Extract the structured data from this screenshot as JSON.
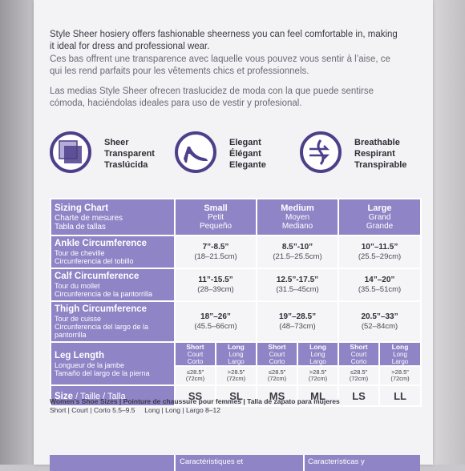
{
  "intro": {
    "en": "Style Sheer hosiery offers fashionable sheerness you can feel comfortable in, making it ideal for dress and professional wear.",
    "fr": "Ces bas offrent une transparence avec laquelle vous pouvez vous sentir à l’aise, ce qui les rend parfaits pour les vêtements chics et professionnels.",
    "es": "Las medias Style Sheer ofrecen traslucidez de moda con la que puede sentirse cómoda, haciéndolas ideales para uso de vestir y profesional."
  },
  "features": [
    {
      "icon": "sheer-squares-icon",
      "en": "Sheer",
      "fr": "Transparent",
      "es": "Traslúcida"
    },
    {
      "icon": "high-heel-shoe-icon",
      "en": "Elegant",
      "fr": "Élégant",
      "es": "Elegante"
    },
    {
      "icon": "breathable-air-icon",
      "en": "Breathable",
      "fr": "Respirant",
      "es": "Transpirable"
    }
  ],
  "chart": {
    "title": {
      "en": "Sizing Chart",
      "fr": "Charte de mesures",
      "es": "Tabla de tallas"
    },
    "sizes": [
      {
        "en": "Small",
        "fr": "Petit",
        "es": "Pequeño"
      },
      {
        "en": "Medium",
        "fr": "Moyen",
        "es": "Mediano"
      },
      {
        "en": "Large",
        "fr": "Grand",
        "es": "Grande"
      }
    ],
    "rows": [
      {
        "en": "Ankle Circumference",
        "fr": "Tour de cheville",
        "es": "Circunferencia del tobillo",
        "values": [
          [
            "7”-8.5”",
            "(18–21.5cm)"
          ],
          [
            "8.5”-10”",
            "(21.5–25.5cm)"
          ],
          [
            "10”–11.5”",
            "(25.5–29cm)"
          ]
        ]
      },
      {
        "en": "Calf Circumference",
        "fr": "Tour du mollet",
        "es": "Circunferencia de la pantorrilla",
        "values": [
          [
            "11”-15.5”",
            "(28–39cm)"
          ],
          [
            "12.5”-17.5”",
            "(31.5–45cm)"
          ],
          [
            "14”–20”",
            "(35.5–51cm)"
          ]
        ]
      },
      {
        "en": "Thigh Circumference",
        "fr": "Tour de cuisse",
        "es": "Circunferencia del largo de la pantorrilla",
        "values": [
          [
            "18”–26”",
            "(45.5–66cm)"
          ],
          [
            "19”–28.5”",
            "(48–73cm)"
          ],
          [
            "20.5”–33”",
            "(52–84cm)"
          ]
        ]
      }
    ],
    "leg": {
      "en": "Leg Length",
      "fr": "Longueur de la jambe",
      "es": "Tamaño del largo de la pierna",
      "sub_short": {
        "en": "Short",
        "fr": "Court",
        "es": "Corto"
      },
      "sub_long": {
        "en": "Long",
        "fr": "Long",
        "es": "Largo"
      },
      "short_val": [
        "≤28.5”",
        "(72cm)"
      ],
      "long_val": [
        ">28.5”",
        "(72cm)"
      ]
    },
    "size_row": {
      "label": "Size",
      "label2": " / Taille / Talla",
      "codes": [
        "SS",
        "SL",
        "MS",
        "ML",
        "LS",
        "LL"
      ]
    }
  },
  "shoe": {
    "heading": "Women’s Shoe Sizes | Pointure de chaussure pour femmes | Talla de zapato para mujeres",
    "line": "Short | Court | Corto 5.5–9.5     Long | Long | Largo 8–12"
  },
  "bottom": [
    "",
    "Caractéristiques et",
    "Características y"
  ]
}
